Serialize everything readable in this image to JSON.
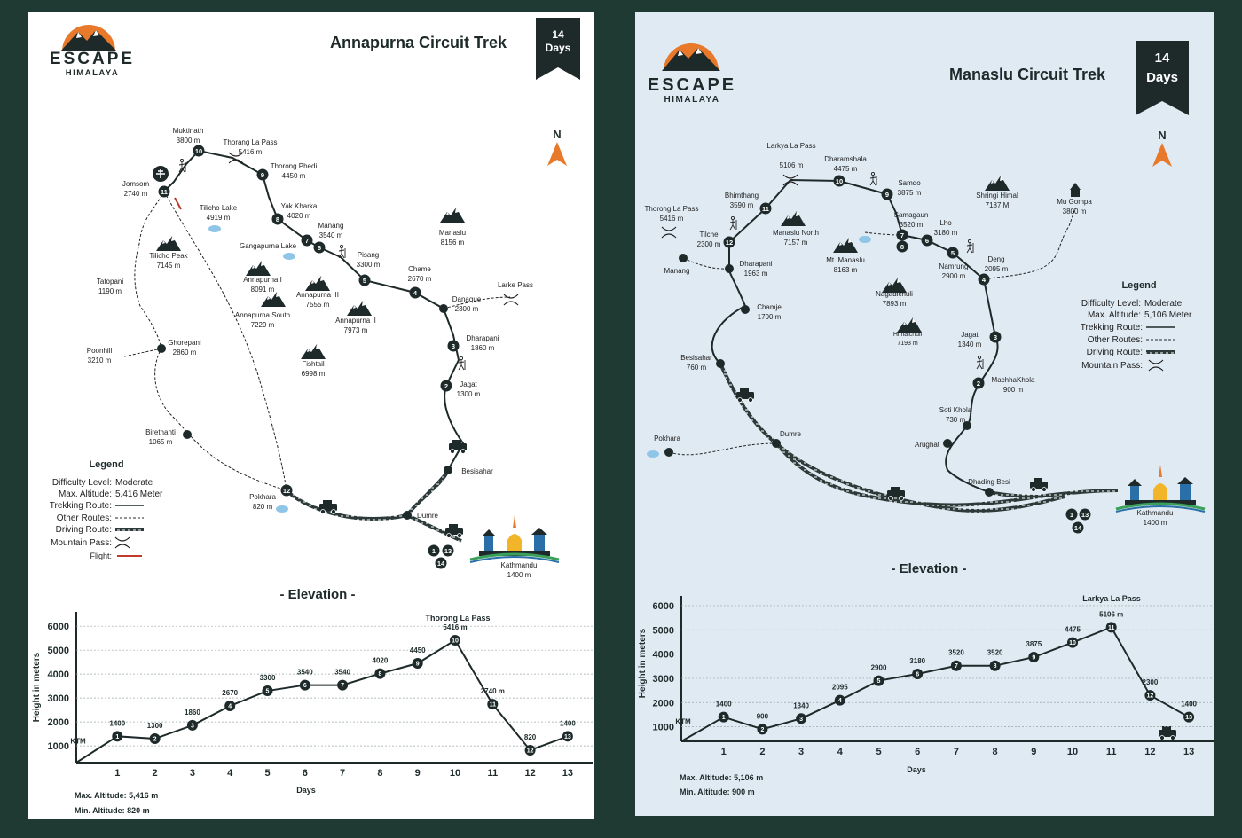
{
  "brand": {
    "name": "ESCAPE",
    "sub": "HIMALAYA"
  },
  "colors": {
    "accent": "#e8792a",
    "dark": "#1e2a2a",
    "left_bg": "#ffffff",
    "right_bg": "#dfeaf3",
    "frame": "#1f3a33",
    "lake": "#8fc6e8"
  },
  "left": {
    "title": "Annapurna Circuit Trek",
    "days_num": "14",
    "days_label": "Days",
    "north": "N",
    "places": [
      {
        "name": "Muktinath",
        "alt": "3800 m"
      },
      {
        "name": "Thorang La Pass",
        "alt": "5416 m"
      },
      {
        "name": "Thorong Phedi",
        "alt": "4450 m"
      },
      {
        "name": "Jomsom",
        "alt": "2740 m"
      },
      {
        "name": "Tilicho Lake",
        "alt": "4919 m"
      },
      {
        "name": "Yak Kharka",
        "alt": "4020 m"
      },
      {
        "name": "Manang",
        "alt": "3540 m"
      },
      {
        "name": "Manaslu",
        "alt": "8156 m"
      },
      {
        "name": "Tilicho Peak",
        "alt": "7145 m"
      },
      {
        "name": "Gangapurna Lake",
        "alt": ""
      },
      {
        "name": "Pisang",
        "alt": "3300 m"
      },
      {
        "name": "Tatopani",
        "alt": "1190 m"
      },
      {
        "name": "Annapurna I",
        "alt": "8091 m"
      },
      {
        "name": "Chame",
        "alt": "2670 m"
      },
      {
        "name": "Larke Pass",
        "alt": ""
      },
      {
        "name": "Annapurna III",
        "alt": "7555 m"
      },
      {
        "name": "Danaque",
        "alt": "2300 m"
      },
      {
        "name": "Annapurna South",
        "alt": "7229 m"
      },
      {
        "name": "Annapurna II",
        "alt": "7973 m"
      },
      {
        "name": "Dharapani",
        "alt": "1860 m"
      },
      {
        "name": "Poonhill",
        "alt": "3210 m"
      },
      {
        "name": "Ghorepani",
        "alt": "2860 m"
      },
      {
        "name": "Fishtail",
        "alt": "6998 m"
      },
      {
        "name": "Jagat",
        "alt": "1300 m"
      },
      {
        "name": "Birethanti",
        "alt": "1065 m"
      },
      {
        "name": "Besisahar",
        "alt": ""
      },
      {
        "name": "Pokhara",
        "alt": "820 m"
      },
      {
        "name": "Dumre",
        "alt": ""
      },
      {
        "name": "Kathmandu",
        "alt": "1400 m"
      }
    ],
    "legend": {
      "title": "Legend",
      "difficulty_label": "Difficulty Level:",
      "difficulty": "Moderate",
      "altitude_label": "Max. Altitude:",
      "altitude": "5,416 Meter",
      "trek": "Trekking Route:",
      "other": "Other Routes:",
      "drive": "Driving Route:",
      "pass": "Mountain Pass:",
      "flight": "Flight:"
    },
    "elevation_title": "- Elevation -",
    "ylabel": "Height in meters",
    "xlabel": "Days",
    "max_alt": "Max. Altitude: 5,416 m",
    "min_alt": "Min. Altitude: 820 m"
  },
  "right": {
    "title": "Manaslu Circuit Trek",
    "days_num": "14",
    "days_label": "Days",
    "north": "N",
    "places": [
      {
        "name": "Larkya La Pass",
        "alt": "5106 m"
      },
      {
        "name": "Dharamshala",
        "alt": "4475 m"
      },
      {
        "name": "Samdo",
        "alt": "3875 m"
      },
      {
        "name": "Shringi Himal",
        "alt": "7187 M"
      },
      {
        "name": "Mu Gompa",
        "alt": "3800 m"
      },
      {
        "name": "Thorong La Pass",
        "alt": "5416 m"
      },
      {
        "name": "Bhimthang",
        "alt": "3590 m"
      },
      {
        "name": "Manaslu North",
        "alt": "7157 m"
      },
      {
        "name": "Samagaun",
        "alt": "3520 m"
      },
      {
        "name": "Lho",
        "alt": "3180 m"
      },
      {
        "name": "Tilche",
        "alt": "2300 m"
      },
      {
        "name": "Mt. Manaslu",
        "alt": "8163 m"
      },
      {
        "name": "Manang",
        "alt": ""
      },
      {
        "name": "Dharapani",
        "alt": "1963 m"
      },
      {
        "name": "Namrung",
        "alt": "2900 m"
      },
      {
        "name": "Deng",
        "alt": "2095 m"
      },
      {
        "name": "Nagadichuli",
        "alt": "7893 m"
      },
      {
        "name": "Chamje",
        "alt": "1700 m"
      },
      {
        "name": "Himalchuli",
        "alt": "7193 m"
      },
      {
        "name": "Jagat",
        "alt": "1340 m"
      },
      {
        "name": "Besisahar",
        "alt": "760 m"
      },
      {
        "name": "MachhaKhola",
        "alt": "900 m"
      },
      {
        "name": "Soti Khola",
        "alt": "730 m"
      },
      {
        "name": "Dumre",
        "alt": ""
      },
      {
        "name": "Arughat",
        "alt": ""
      },
      {
        "name": "Pokhara",
        "alt": ""
      },
      {
        "name": "Dhading Besi",
        "alt": ""
      },
      {
        "name": "Kathmandu",
        "alt": "1400 m"
      }
    ],
    "legend": {
      "title": "Legend",
      "difficulty_label": "Difficulty Level:",
      "difficulty": "Moderate",
      "altitude_label": "Max. Altitude:",
      "altitude": "5,106 Meter",
      "trek": "Trekking Route:",
      "other": "Other Routes:",
      "drive": "Driving Route:",
      "pass": "Mountain Pass:"
    },
    "elevation_title": "- Elevation -",
    "ylabel": "Height in meters",
    "xlabel": "Days",
    "max_alt": "Max. Altitude: 5,106 m",
    "min_alt": "Min. Altitude: 900 m"
  },
  "chart_data": [
    {
      "type": "line",
      "x": [
        "KTM",
        "1",
        "2",
        "3",
        "4",
        "5",
        "6",
        "7",
        "8",
        "9",
        "10",
        "11",
        "12",
        "13"
      ],
      "values": [
        null,
        1400,
        1300,
        1860,
        2670,
        3300,
        3540,
        3540,
        4020,
        4450,
        5416,
        2740,
        820,
        1400
      ],
      "value_labels": [
        "",
        "1400",
        "1300",
        "1860",
        "2670",
        "3300",
        "3540",
        "3540",
        "4020",
        "4450",
        "5416 m",
        "2740 m",
        "820",
        "1400"
      ],
      "yticks": [
        1000,
        2000,
        3000,
        4000,
        5000,
        6000
      ],
      "ylim": [
        300,
        6600
      ],
      "annotation": "Thorong La Pass",
      "xlabel": "Days",
      "ylabel": "Height in meters",
      "grid": true
    },
    {
      "type": "line",
      "x": [
        "KTM",
        "1",
        "2",
        "3",
        "4",
        "5",
        "6",
        "7",
        "8",
        "9",
        "10",
        "11",
        "12",
        "13"
      ],
      "values": [
        null,
        1400,
        900,
        1340,
        2095,
        2900,
        3180,
        3520,
        3520,
        3875,
        4475,
        5106,
        2300,
        1400
      ],
      "value_labels": [
        "",
        "1400",
        "900",
        "1340",
        "2095",
        "2900",
        "3180",
        "3520",
        "3520",
        "3875",
        "4475",
        "5106 m",
        "2300",
        "1400"
      ],
      "yticks": [
        1000,
        2000,
        3000,
        4000,
        5000,
        6000
      ],
      "ylim": [
        400,
        6400
      ],
      "annotation": "Larkya La Pass",
      "xlabel": "Days",
      "ylabel": "Height in meters",
      "grid": true
    }
  ]
}
